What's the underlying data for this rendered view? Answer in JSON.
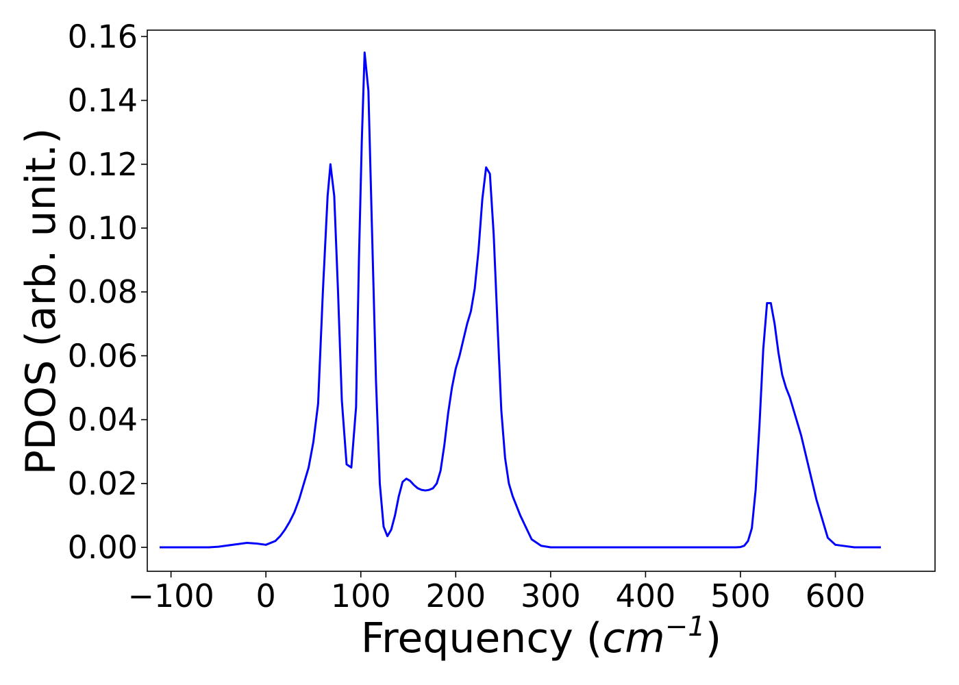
{
  "chart_data": {
    "type": "line",
    "title": "",
    "xlabel_prefix": "Frequency (",
    "xlabel_unit": "cm",
    "xlabel_exponent": "−1",
    "xlabel_suffix": ")",
    "ylabel": "PDOS (arb. unit.)",
    "xlim": [
      -125,
      705
    ],
    "ylim": [
      -0.0075,
      0.162
    ],
    "x_ticks": [
      -100,
      0,
      100,
      200,
      300,
      400,
      500,
      600
    ],
    "x_tick_labels": [
      "−100",
      "0",
      "100",
      "200",
      "300",
      "400",
      "500",
      "600"
    ],
    "y_ticks": [
      0.0,
      0.02,
      0.04,
      0.06,
      0.08,
      0.1,
      0.12,
      0.14,
      0.16
    ],
    "y_tick_labels": [
      "0.00",
      "0.02",
      "0.04",
      "0.06",
      "0.08",
      "0.10",
      "0.12",
      "0.14",
      "0.16"
    ],
    "grid": false,
    "line_color": "#0000ff",
    "series": [
      {
        "x": [
          -112,
          -80,
          -60,
          -50,
          -40,
          -30,
          -20,
          -10,
          0,
          10,
          15,
          20,
          25,
          30,
          35,
          40,
          45,
          50,
          55,
          60,
          65,
          68,
          72,
          76,
          80,
          85,
          90,
          95,
          98,
          101,
          104,
          108,
          112,
          116,
          120,
          124,
          128,
          132,
          136,
          140,
          144,
          148,
          152,
          156,
          160,
          164,
          168,
          172,
          176,
          180,
          184,
          188,
          192,
          196,
          200,
          204,
          208,
          212,
          216,
          220,
          224,
          228,
          232,
          236,
          240,
          244,
          248,
          252,
          256,
          260,
          264,
          268,
          272,
          276,
          280,
          290,
          300,
          400,
          495,
          500,
          504,
          508,
          512,
          516,
          520,
          524,
          528,
          532,
          536,
          540,
          544,
          548,
          552,
          556,
          560,
          564,
          568,
          572,
          576,
          580,
          584,
          588,
          592,
          600,
          620,
          648
        ],
        "y": [
          0.0,
          0.0,
          0.0,
          0.0002,
          0.0006,
          0.001,
          0.0014,
          0.0012,
          0.0008,
          0.002,
          0.0035,
          0.0055,
          0.008,
          0.011,
          0.015,
          0.02,
          0.025,
          0.033,
          0.045,
          0.08,
          0.11,
          0.12,
          0.11,
          0.08,
          0.046,
          0.026,
          0.025,
          0.044,
          0.09,
          0.127,
          0.155,
          0.143,
          0.097,
          0.052,
          0.02,
          0.0065,
          0.0035,
          0.0055,
          0.01,
          0.016,
          0.0205,
          0.0215,
          0.0208,
          0.0195,
          0.0185,
          0.018,
          0.0178,
          0.018,
          0.0185,
          0.02,
          0.024,
          0.032,
          0.042,
          0.05,
          0.056,
          0.06,
          0.065,
          0.07,
          0.074,
          0.081,
          0.093,
          0.109,
          0.119,
          0.117,
          0.098,
          0.07,
          0.043,
          0.028,
          0.02,
          0.016,
          0.013,
          0.01,
          0.0075,
          0.005,
          0.0025,
          0.0005,
          0.0,
          0.0,
          0.0,
          0.0001,
          0.0005,
          0.002,
          0.006,
          0.018,
          0.038,
          0.062,
          0.0765,
          0.0765,
          0.07,
          0.061,
          0.054,
          0.05,
          0.047,
          0.043,
          0.039,
          0.035,
          0.03,
          0.025,
          0.02,
          0.015,
          0.011,
          0.007,
          0.003,
          0.0008,
          0.0,
          0.0
        ]
      }
    ]
  }
}
